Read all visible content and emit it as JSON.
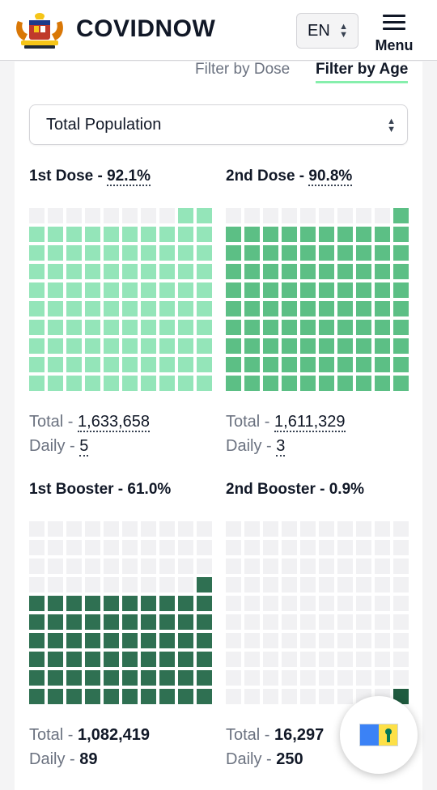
{
  "header": {
    "brand": "COVIDNOW",
    "lang": "EN",
    "menu_label": "Menu"
  },
  "filters": {
    "by_dose": "Filter by Dose",
    "by_age": "Filter by Age"
  },
  "population_select": {
    "value": "Total Population"
  },
  "panels": [
    {
      "title": "1st Dose - ",
      "pct_label": "92.1%",
      "pct": 92.1,
      "color": "#94e5b9",
      "total_label": "Total - ",
      "total": "1,633,658",
      "daily_label": "Daily - ",
      "daily": "5"
    },
    {
      "title": "2nd Dose - ",
      "pct_label": "90.8%",
      "pct": 90.8,
      "color": "#5cbf85",
      "total_label": "Total - ",
      "total": "1,611,329",
      "daily_label": "Daily - ",
      "daily": "3"
    },
    {
      "title": "1st Booster - ",
      "pct_label": "61.0%",
      "pct": 61.0,
      "color": "#2f7052",
      "total_label": "Total - ",
      "total": "1,082,419",
      "daily_label": "Daily - ",
      "daily": "89"
    },
    {
      "title": "2nd Booster - ",
      "pct_label": "0.9%",
      "pct": 0.9,
      "color": "#1f5b3f",
      "total_label": "Total - ",
      "total": "16,297",
      "daily_label": "Daily - ",
      "daily": "250"
    }
  ],
  "empty_color": "#f1f1f3"
}
